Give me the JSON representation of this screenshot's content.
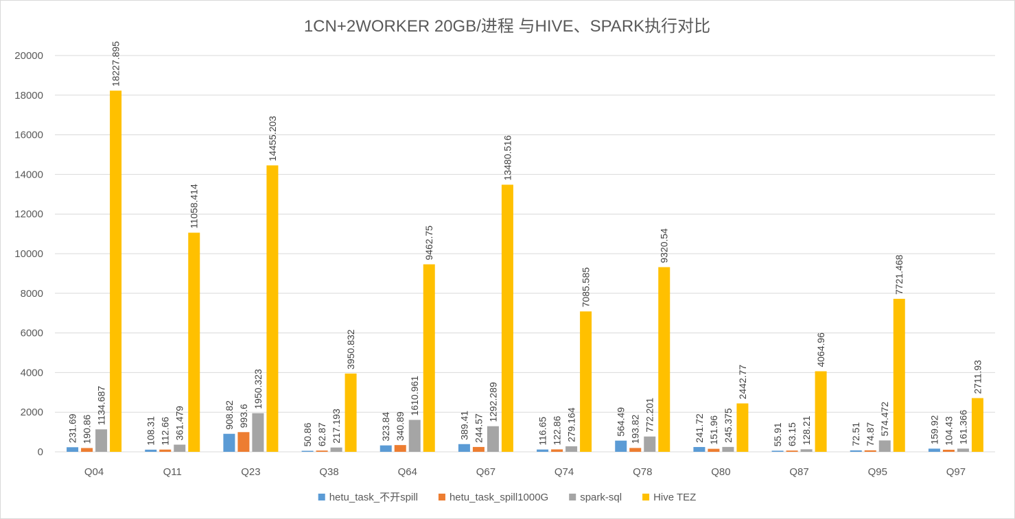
{
  "chart_data": {
    "type": "bar",
    "title": "1CN+2WORKER 20GB/进程 与HIVE、SPARK执行对比",
    "xlabel": "",
    "ylabel": "",
    "ylim": [
      0,
      20000
    ],
    "yticks": [
      "0",
      "2000",
      "4000",
      "6000",
      "8000",
      "10000",
      "12000",
      "14000",
      "16000",
      "18000",
      "20000"
    ],
    "grid": true,
    "legend_position": "bottom",
    "categories": [
      "Q04",
      "Q11",
      "Q23",
      "Q38",
      "Q64",
      "Q67",
      "Q74",
      "Q78",
      "Q80",
      "Q87",
      "Q95",
      "Q97"
    ],
    "series": [
      {
        "name": "hetu_task_不开spill",
        "color": "#5b9bd5",
        "values": [
          231.69,
          108.31,
          908.82,
          50.86,
          323.84,
          389.41,
          116.65,
          564.49,
          241.72,
          55.91,
          72.51,
          159.92
        ],
        "labels": [
          "231.69",
          "108.31",
          "908.82",
          "50.86",
          "323.84",
          "389.41",
          "116.65",
          "564.49",
          "241.72",
          "55.91",
          "72.51",
          "159.92"
        ]
      },
      {
        "name": "hetu_task_spill1000G",
        "color": "#ed7d31",
        "values": [
          190.86,
          112.66,
          993.6,
          62.87,
          340.89,
          244.57,
          122.86,
          193.82,
          151.96,
          63.15,
          74.87,
          104.43
        ],
        "labels": [
          "190.86",
          "112.66",
          "993.6",
          "62.87",
          "340.89",
          "244.57",
          "122.86",
          "193.82",
          "151.96",
          "63.15",
          "74.87",
          "104.43"
        ]
      },
      {
        "name": "spark-sql",
        "color": "#a5a5a5",
        "values": [
          1134.687,
          361.479,
          1950.323,
          217.193,
          1610.961,
          1292.289,
          279.164,
          772.201,
          245.375,
          128.21,
          574.472,
          161.366
        ],
        "labels": [
          "1134.687",
          "361.479",
          "1950.323",
          "217.193",
          "1610.961",
          "1292.289",
          "279.164",
          "772.201",
          "245.375",
          "128.21",
          "574.472",
          "161.366"
        ]
      },
      {
        "name": "Hive TEZ",
        "color": "#ffc000",
        "values": [
          18227.895,
          11058.414,
          14455.203,
          3950.832,
          9462.75,
          13480.516,
          7085.585,
          9320.54,
          2442.77,
          4064.96,
          7721.468,
          2711.93
        ],
        "labels": [
          "18227.895",
          "11058.414",
          "14455.203",
          "3950.832",
          "9462.75",
          "13480.516",
          "7085.585",
          "9320.54",
          "2442.77",
          "4064.96",
          "7721.468",
          "2711.93"
        ]
      }
    ]
  }
}
